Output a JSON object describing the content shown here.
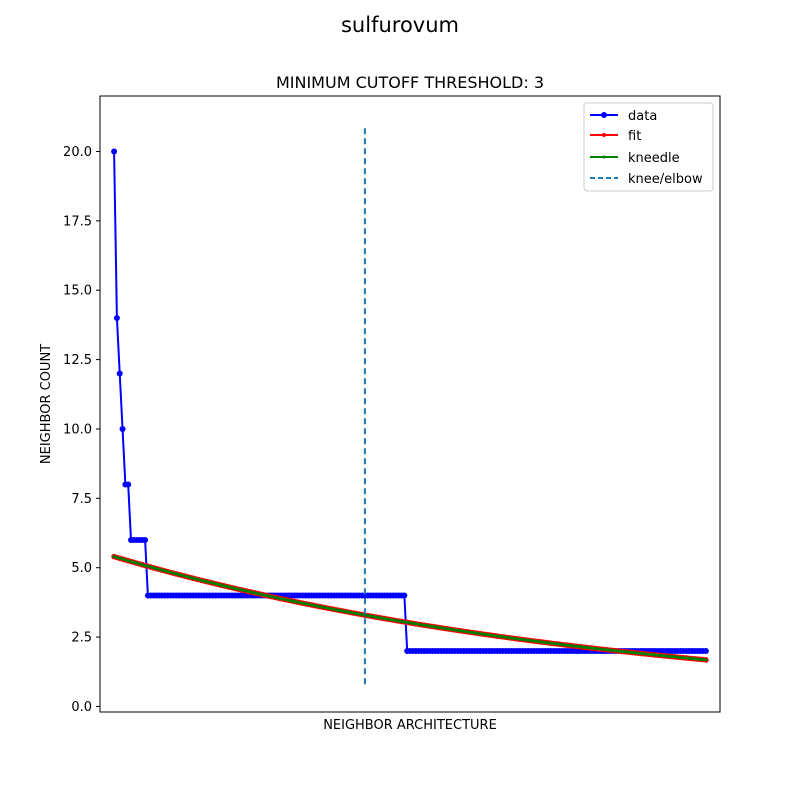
{
  "figure": {
    "suptitle": "sulfurovum"
  },
  "chart_data": {
    "type": "line",
    "title": "MINIMUM CUTOFF THRESHOLD: 3",
    "xlabel": "NEIGHBOR ARCHITECTURE",
    "ylabel": "NEIGHBOR COUNT",
    "ylim": [
      -0.2,
      22.0
    ],
    "xlim": [
      -5,
      215
    ],
    "yticks": [
      0.0,
      2.5,
      5.0,
      7.5,
      10.0,
      12.5,
      15.0,
      17.5,
      20.0
    ],
    "ytick_labels": [
      "0.0",
      "2.5",
      "5.0",
      "7.5",
      "10.0",
      "12.5",
      "15.0",
      "17.5",
      "20.0"
    ],
    "x_tick_labels_visible": false,
    "grid": false,
    "legend_position": "upper right",
    "series": [
      {
        "name": "data",
        "color": "#0000ff",
        "marker": "circle",
        "segments": [
          {
            "x": [
              0,
              1,
              2,
              3,
              4,
              5
            ],
            "y": [
              20,
              14,
              12,
              10,
              8,
              8
            ]
          },
          {
            "x_start": 6,
            "x_end": 11,
            "y": 6
          },
          {
            "x_start": 12,
            "x_end": 103,
            "y": 4
          },
          {
            "x_start": 104,
            "x_end": 210,
            "y": 2
          }
        ]
      },
      {
        "name": "fit",
        "color": "#ff0000",
        "marker": "point",
        "model": "exponential",
        "x_range": [
          0,
          210
        ],
        "y_start": 5.4,
        "y_end": 1.68
      },
      {
        "name": "kneedle",
        "color": "#008000",
        "marker": "point",
        "model": "exponential",
        "x_range": [
          0,
          210
        ],
        "y_start": 5.4,
        "y_end": 1.68
      },
      {
        "name": "knee/elbow",
        "color": "#1f77b4",
        "style": "dashed",
        "x": 89,
        "y_range": [
          0.8,
          20.9
        ]
      }
    ]
  }
}
